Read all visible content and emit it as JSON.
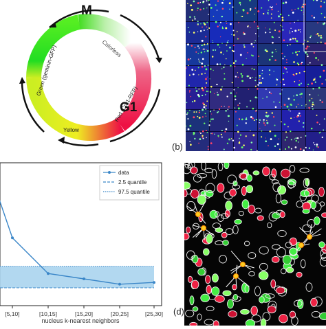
{
  "cycle": {
    "phase_m": "M",
    "phase_g1": "G1",
    "arc_green": "Green (geminin-GFP)",
    "arc_colorless": "Colorless",
    "arc_red": "Red (Cdt1-RFP)",
    "arc_yellow": "Yellow",
    "colors": {
      "green": "#22dd22",
      "red": "#ee1144",
      "yellow": "#eeee22",
      "white": "#ffffff"
    }
  },
  "tile_image": {
    "label": "(b)",
    "bg_color": "#0a0a3a"
  },
  "cells_image": {
    "label": "(d)",
    "bg_color": "#050505"
  },
  "chart_data": {
    "type": "line",
    "categories": [
      "[5,10]",
      "[10,15]",
      "[15,20]",
      "[20,25]",
      "[25,30]"
    ],
    "xlabel": "nucleus k-nearest neighbors",
    "ylabel": "",
    "series": [
      {
        "name": "data",
        "values": [
          0.78,
          0.58,
          0.55,
          0.52,
          0.53
        ],
        "color": "#3a86c8"
      },
      {
        "name": "2.5 quantile",
        "values": [
          0.5,
          0.5,
          0.5,
          0.5,
          0.5
        ],
        "color": "#3a86c8"
      },
      {
        "name": "97.5 quantile",
        "values": [
          0.62,
          0.62,
          0.62,
          0.62,
          0.62
        ],
        "color": "#3a86c8"
      }
    ],
    "extra_left_point": 1.05,
    "ylim": [
      0.4,
      1.2
    ],
    "grid": false,
    "legend": "top-right",
    "band_color": "#aad4ee"
  }
}
